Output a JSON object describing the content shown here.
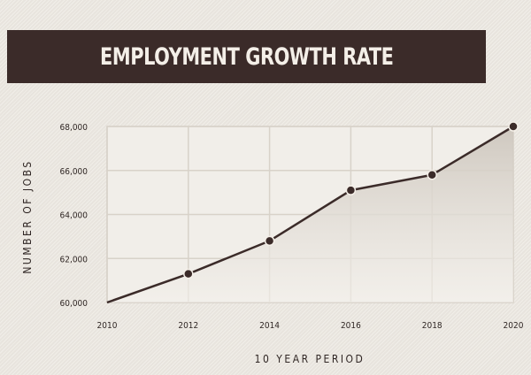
{
  "chart_data": {
    "type": "area",
    "title": "EMPLOYMENT GROWTH RATE",
    "xlabel": "10 YEAR PERIOD",
    "ylabel": "NUMBER OF JOBS",
    "x": [
      2010,
      2012,
      2014,
      2016,
      2018,
      2020
    ],
    "x_tick_labels": [
      "2010",
      "2012",
      "2014",
      "2016",
      "2018",
      "2020"
    ],
    "y_tick_labels": [
      "68,000",
      "66,000",
      "64,000",
      "62,000",
      "60,000"
    ],
    "y_ticks": [
      68000,
      66000,
      64000,
      62000,
      60000
    ],
    "values": [
      60000,
      61300,
      62800,
      65100,
      65800,
      68000
    ],
    "ylim": [
      60000,
      68000
    ],
    "xlim": [
      2010,
      2020
    ],
    "grid": true,
    "colors": {
      "banner": "#3b2b29",
      "line": "#3b2b29",
      "grid": "#d8d2c9",
      "marker_fill": "#3b2b29",
      "marker_ring": "#f4efe8"
    }
  }
}
